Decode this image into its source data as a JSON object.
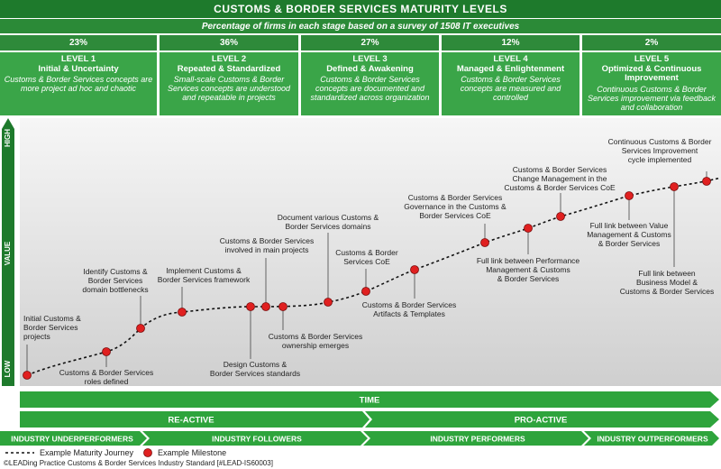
{
  "header": {
    "title": "CUSTOMS & BORDER SERVICES MATURITY LEVELS",
    "subtitle": "Percentage of firms in each stage based on a survey of 1508 IT executives"
  },
  "levels": [
    {
      "percent": "23%",
      "title": "LEVEL 1",
      "name": "Initial & Uncertainty",
      "desc": "Customs & Border Services concepts are more project ad hoc and chaotic"
    },
    {
      "percent": "36%",
      "title": "LEVEL 2",
      "name": "Repeated & Standardized",
      "desc": "Small-scale Customs & Border Services concepts are understood and repeatable in projects"
    },
    {
      "percent": "27%",
      "title": "LEVEL 3",
      "name": "Defined & Awakening",
      "desc": "Customs & Border Services concepts are documented and standardized across organization"
    },
    {
      "percent": "12%",
      "title": "LEVEL 4",
      "name": "Managed & Enlightenment",
      "desc": "Customs & Border Services concepts are measured and controlled"
    },
    {
      "percent": "2%",
      "title": "LEVEL 5",
      "name": "Optimized & Continuous Improvement",
      "desc": "Continuous Customs & Border Services improvement via feedback and collaboration"
    }
  ],
  "axis": {
    "high": "HIGH",
    "value": "VALUE",
    "low": "LOW",
    "time": "TIME"
  },
  "phases": {
    "reactive": "RE-ACTIVE",
    "proactive": "PRO-ACTIVE"
  },
  "segments": [
    "INDUSTRY UNDERPERFORMERS",
    "INDUSTRY FOLLOWERS",
    "INDUSTRY PERFORMERS",
    "INDUSTRY OUTPERFORMERS"
  ],
  "milestones": [
    {
      "label": "Initial Customs & Border Services projects"
    },
    {
      "label": "Customs & Border Services roles defined"
    },
    {
      "label": "Identify Customs & Border Services domain bottlenecks"
    },
    {
      "label": "Implement Customs & Border Services framework"
    },
    {
      "label": "Design Customs & Border Services standards"
    },
    {
      "label": "Customs & Border Services involved in main projects"
    },
    {
      "label": "Customs & Border Services ownership emerges"
    },
    {
      "label": "Document various Customs & Border Services domains"
    },
    {
      "label": "Customs & Border Services CoE"
    },
    {
      "label": "Customs & Border Services Artifacts & Templates"
    },
    {
      "label": "Customs & Border Services Governance in the Customs & Border Services CoE"
    },
    {
      "label": "Full link between Performance Management & Customs & Border Services"
    },
    {
      "label": "Customs & Border Services Change Management in the Customs & Border Services CoE"
    },
    {
      "label": "Full link between Value Management & Customs & Border Services"
    },
    {
      "label": "Full link between Business Model & Customs & Border Services"
    },
    {
      "label": "Continuous Customs & Border Services Improvement cycle implemented"
    }
  ],
  "legend": {
    "journey": "Example Maturity Journey",
    "milestone": "Example Milestone"
  },
  "footer": "©LEADing Practice Customs & Border Services Industry Standard [#LEAD-IS60003]",
  "colors": {
    "dark_green": "#1e7a2c",
    "mid_green": "#2e8a3a",
    "light_green": "#3aa548",
    "milestone_red": "#e02020"
  }
}
